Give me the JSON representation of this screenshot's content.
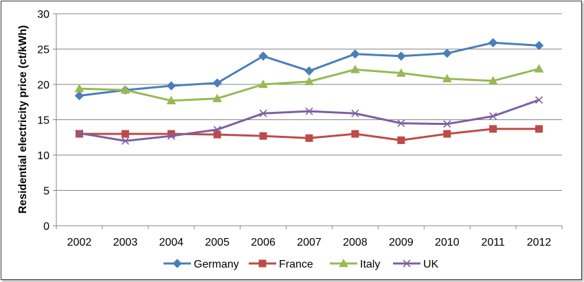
{
  "chart_data": {
    "type": "line",
    "title": "",
    "xlabel": "",
    "ylabel": "Residential electricity price (ct/kWh)",
    "ylim": [
      0,
      30
    ],
    "yticks": [
      0,
      5,
      10,
      15,
      20,
      25,
      30
    ],
    "categories": [
      "2002",
      "2003",
      "2004",
      "2005",
      "2006",
      "2007",
      "2008",
      "2009",
      "2010",
      "2011",
      "2012"
    ],
    "grid": "horizontal",
    "legend_position": "bottom",
    "series": [
      {
        "name": "Germany",
        "color": "#4a7ebb",
        "marker": "diamond",
        "values": [
          18.4,
          19.2,
          19.8,
          20.2,
          24.0,
          21.9,
          24.3,
          24.0,
          24.4,
          25.9,
          25.5
        ]
      },
      {
        "name": "France",
        "color": "#be4b48",
        "marker": "square",
        "values": [
          13.0,
          13.0,
          13.0,
          12.9,
          12.7,
          12.4,
          13.0,
          12.1,
          13.0,
          13.7,
          13.7
        ]
      },
      {
        "name": "Italy",
        "color": "#98b954",
        "marker": "triangle",
        "values": [
          19.4,
          19.2,
          17.7,
          18.0,
          20.0,
          20.4,
          22.1,
          21.6,
          20.8,
          20.5,
          22.2
        ]
      },
      {
        "name": "UK",
        "color": "#7d60a0",
        "marker": "x",
        "values": [
          13.1,
          12.0,
          12.7,
          13.6,
          15.9,
          16.2,
          15.9,
          14.5,
          14.4,
          15.5,
          17.8
        ]
      }
    ]
  }
}
